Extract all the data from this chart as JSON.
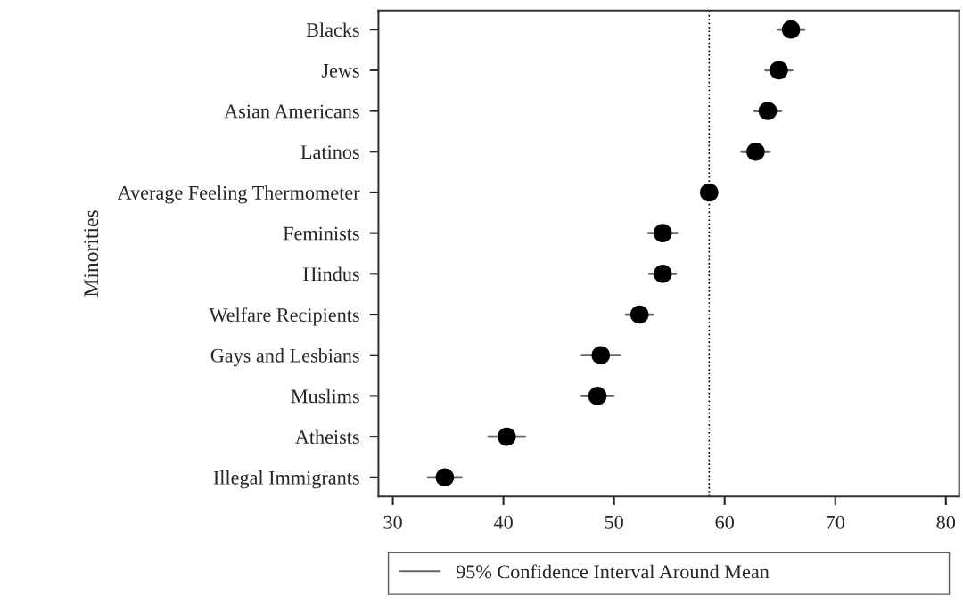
{
  "chart_data": {
    "type": "scatter",
    "orientation": "horizontal",
    "ylabel": "Minorities",
    "categories": [
      "Blacks",
      "Jews",
      "Asian Americans",
      "Latinos",
      "Average Feeling Thermometer",
      "Feminists",
      "Hindus",
      "Welfare Recipients",
      "Gays and Lesbians",
      "Muslims",
      "Atheists",
      "Illegal Immigrants"
    ],
    "series": [
      {
        "name": "95% Confidence Interval Around Mean",
        "color": "#000000",
        "values": [
          66.0,
          64.9,
          63.9,
          62.8,
          58.6,
          54.4,
          54.4,
          52.3,
          48.8,
          48.5,
          40.3,
          34.7
        ],
        "errors": [
          1.2,
          1.2,
          1.2,
          1.25,
          null,
          1.3,
          1.2,
          1.2,
          1.7,
          1.45,
          1.65,
          1.5
        ]
      }
    ],
    "xlim": [
      28.7,
      81.2
    ],
    "xticks": [
      30,
      40,
      50,
      60,
      70,
      80
    ],
    "ref_lines": [
      {
        "axis": "x",
        "value": 58.6,
        "line_style": "dotted",
        "color": "#000000"
      }
    ],
    "marker": "circle",
    "grid": false,
    "legend": "bottom"
  }
}
